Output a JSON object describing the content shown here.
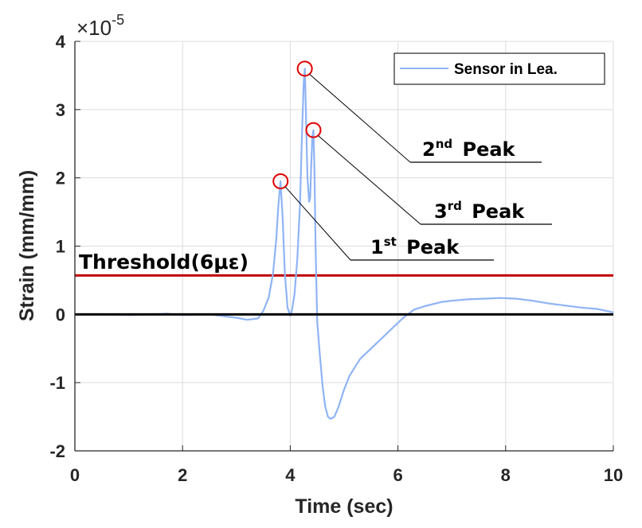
{
  "chart_data": {
    "type": "line",
    "title": "",
    "xlabel": "Time (sec)",
    "ylabel": "Strain (mm/mm)",
    "y_exponent_label": "×10",
    "y_exponent_power": "-5",
    "y_scale": 1e-05,
    "xlim": [
      0,
      10
    ],
    "ylim": [
      -2,
      4
    ],
    "xticks": [
      0,
      2,
      4,
      6,
      8,
      10
    ],
    "xtick_labels": [
      "0",
      "2",
      "4",
      "6",
      "8",
      "10"
    ],
    "yticks": [
      -2,
      -1,
      0,
      1,
      2,
      3,
      4
    ],
    "ytick_labels": [
      "-2",
      "-1",
      "0",
      "1",
      "2",
      "3",
      "4"
    ],
    "grid": true,
    "legend": {
      "position": "top-right",
      "entries": [
        "Sensor in Lea."
      ]
    },
    "colors": {
      "series": "#8fb4f5",
      "threshold": "#c00000",
      "zero": "#000000",
      "peak_marker": "#e00000",
      "grid": "#dcdcdc",
      "axis": "#262626"
    },
    "series": [
      {
        "name": "Sensor in Lea.",
        "x": [
          0,
          0.5,
          1.0,
          1.5,
          1.7,
          2.0,
          2.5,
          3.0,
          3.2,
          3.4,
          3.5,
          3.6,
          3.68,
          3.74,
          3.78,
          3.82,
          3.86,
          3.9,
          3.95,
          4.0,
          4.03,
          4.08,
          4.13,
          4.18,
          4.22,
          4.25,
          4.27,
          4.29,
          4.32,
          4.35,
          4.37,
          4.39,
          4.41,
          4.43,
          4.45,
          4.47,
          4.5,
          4.55,
          4.6,
          4.65,
          4.7,
          4.75,
          4.82,
          4.9,
          5.0,
          5.1,
          5.3,
          5.5,
          5.7,
          5.9,
          6.1,
          6.3,
          6.5,
          6.8,
          7.0,
          7.3,
          7.6,
          7.9,
          8.2,
          8.5,
          8.8,
          9.1,
          9.4,
          9.7,
          10.0
        ],
        "y": [
          0.0,
          0.0,
          -0.01,
          0.0,
          0.01,
          -0.01,
          0.0,
          -0.05,
          -0.08,
          -0.06,
          0.05,
          0.25,
          0.6,
          1.1,
          1.6,
          1.95,
          1.4,
          0.6,
          0.1,
          -0.02,
          0.05,
          0.3,
          0.8,
          1.6,
          2.7,
          3.4,
          3.6,
          3.0,
          2.0,
          1.65,
          1.7,
          2.2,
          2.6,
          2.7,
          2.1,
          1.0,
          -0.1,
          -0.6,
          -1.05,
          -1.35,
          -1.5,
          -1.53,
          -1.5,
          -1.35,
          -1.1,
          -0.9,
          -0.65,
          -0.5,
          -0.35,
          -0.2,
          -0.05,
          0.07,
          0.12,
          0.18,
          0.2,
          0.22,
          0.23,
          0.24,
          0.23,
          0.2,
          0.16,
          0.13,
          0.1,
          0.08,
          0.03
        ]
      }
    ],
    "reference_lines": [
      {
        "name": "threshold",
        "y": 0.57,
        "label": "Threshold(6με)"
      },
      {
        "name": "zero",
        "y": 0
      }
    ],
    "annotations": [
      {
        "num": "1",
        "sup": "st",
        "text": "Peak",
        "peak_x": 3.82,
        "peak_y": 1.95
      },
      {
        "num": "2",
        "sup": "nd",
        "text": "Peak",
        "peak_x": 4.27,
        "peak_y": 3.6
      },
      {
        "num": "3",
        "sup": "rd",
        "text": "Peak",
        "peak_x": 4.43,
        "peak_y": 2.7
      }
    ]
  }
}
